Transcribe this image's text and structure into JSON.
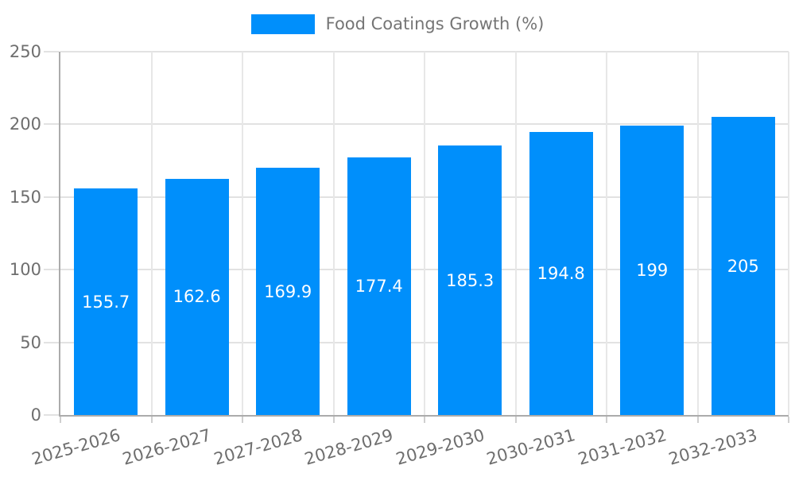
{
  "chart_data": {
    "type": "bar",
    "title": "",
    "legend": {
      "position": "top",
      "items": [
        {
          "label": "Food Coatings Growth (%)",
          "color": "#008FFB"
        }
      ]
    },
    "categories": [
      "2025-2026",
      "2026-2027",
      "2027-2028",
      "2028-2029",
      "2029-2030",
      "2030-2031",
      "2031-2032",
      "2032-2033"
    ],
    "series": [
      {
        "name": "Food Coatings Growth (%)",
        "color": "#008FFB",
        "values": [
          155.7,
          162.6,
          169.9,
          177.4,
          185.3,
          194.8,
          199,
          205
        ],
        "labels": [
          "155.7",
          "162.6",
          "169.9",
          "177.4",
          "185.3",
          "194.8",
          "199",
          "205"
        ]
      }
    ],
    "xlabel": "",
    "ylabel": "",
    "ylim": [
      0,
      250
    ],
    "yticks": [
      0,
      50,
      100,
      150,
      200,
      250
    ],
    "grid": "on",
    "data_labels": "inside-center",
    "colors": {
      "bar": "#008FFB",
      "grid_horizontal": "#e2e2e2",
      "grid_vertical": "#e7e7e7",
      "axis_line": "#ababab",
      "axis_label": "#6e6e6e",
      "legend_text": "#757575",
      "data_label_text": "#ffffff",
      "background": "#ffffff"
    }
  }
}
